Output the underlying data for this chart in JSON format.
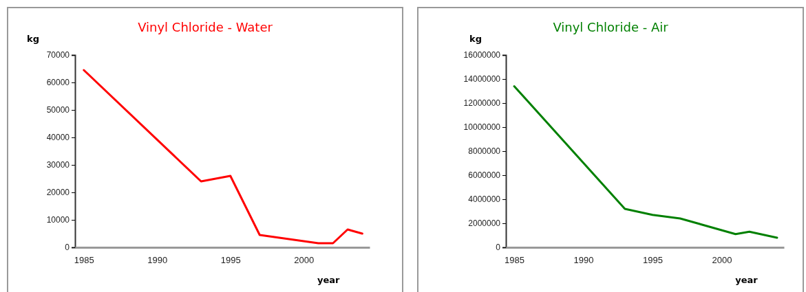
{
  "chart_data": [
    {
      "type": "line",
      "title": "Vinyl Chloride - Water",
      "ylabel": "kg",
      "xlabel": "year",
      "x": [
        1985,
        1993,
        1995,
        1997,
        2001,
        2002,
        2003,
        2004
      ],
      "series": [
        {
          "color": "#ff0000",
          "values": [
            64500,
            24000,
            26000,
            4500,
            1500,
            1500,
            6500,
            5000
          ]
        }
      ],
      "xlim": [
        1984.4,
        2004.5
      ],
      "xticks": [
        1985,
        1990,
        1995,
        2000
      ],
      "ylim": [
        0,
        70000
      ],
      "yticks": [
        0,
        10000,
        20000,
        30000,
        40000,
        50000,
        60000,
        70000
      ],
      "grid": false
    },
    {
      "type": "line",
      "title": "Vinyl Chloride - Air",
      "ylabel": "kg",
      "xlabel": "year",
      "x": [
        1985,
        1993,
        1995,
        1997,
        2001,
        2002,
        2004
      ],
      "series": [
        {
          "color": "#008000",
          "values": [
            13400000,
            3200000,
            2700000,
            2400000,
            1100000,
            1300000,
            800000
          ]
        }
      ],
      "xlim": [
        1984.4,
        2004.5
      ],
      "xticks": [
        1985,
        1990,
        1995,
        2000
      ],
      "ylim": [
        0,
        16000000
      ],
      "yticks": [
        0,
        2000000,
        4000000,
        6000000,
        8000000,
        10000000,
        12000000,
        14000000,
        16000000
      ],
      "grid": false
    }
  ]
}
